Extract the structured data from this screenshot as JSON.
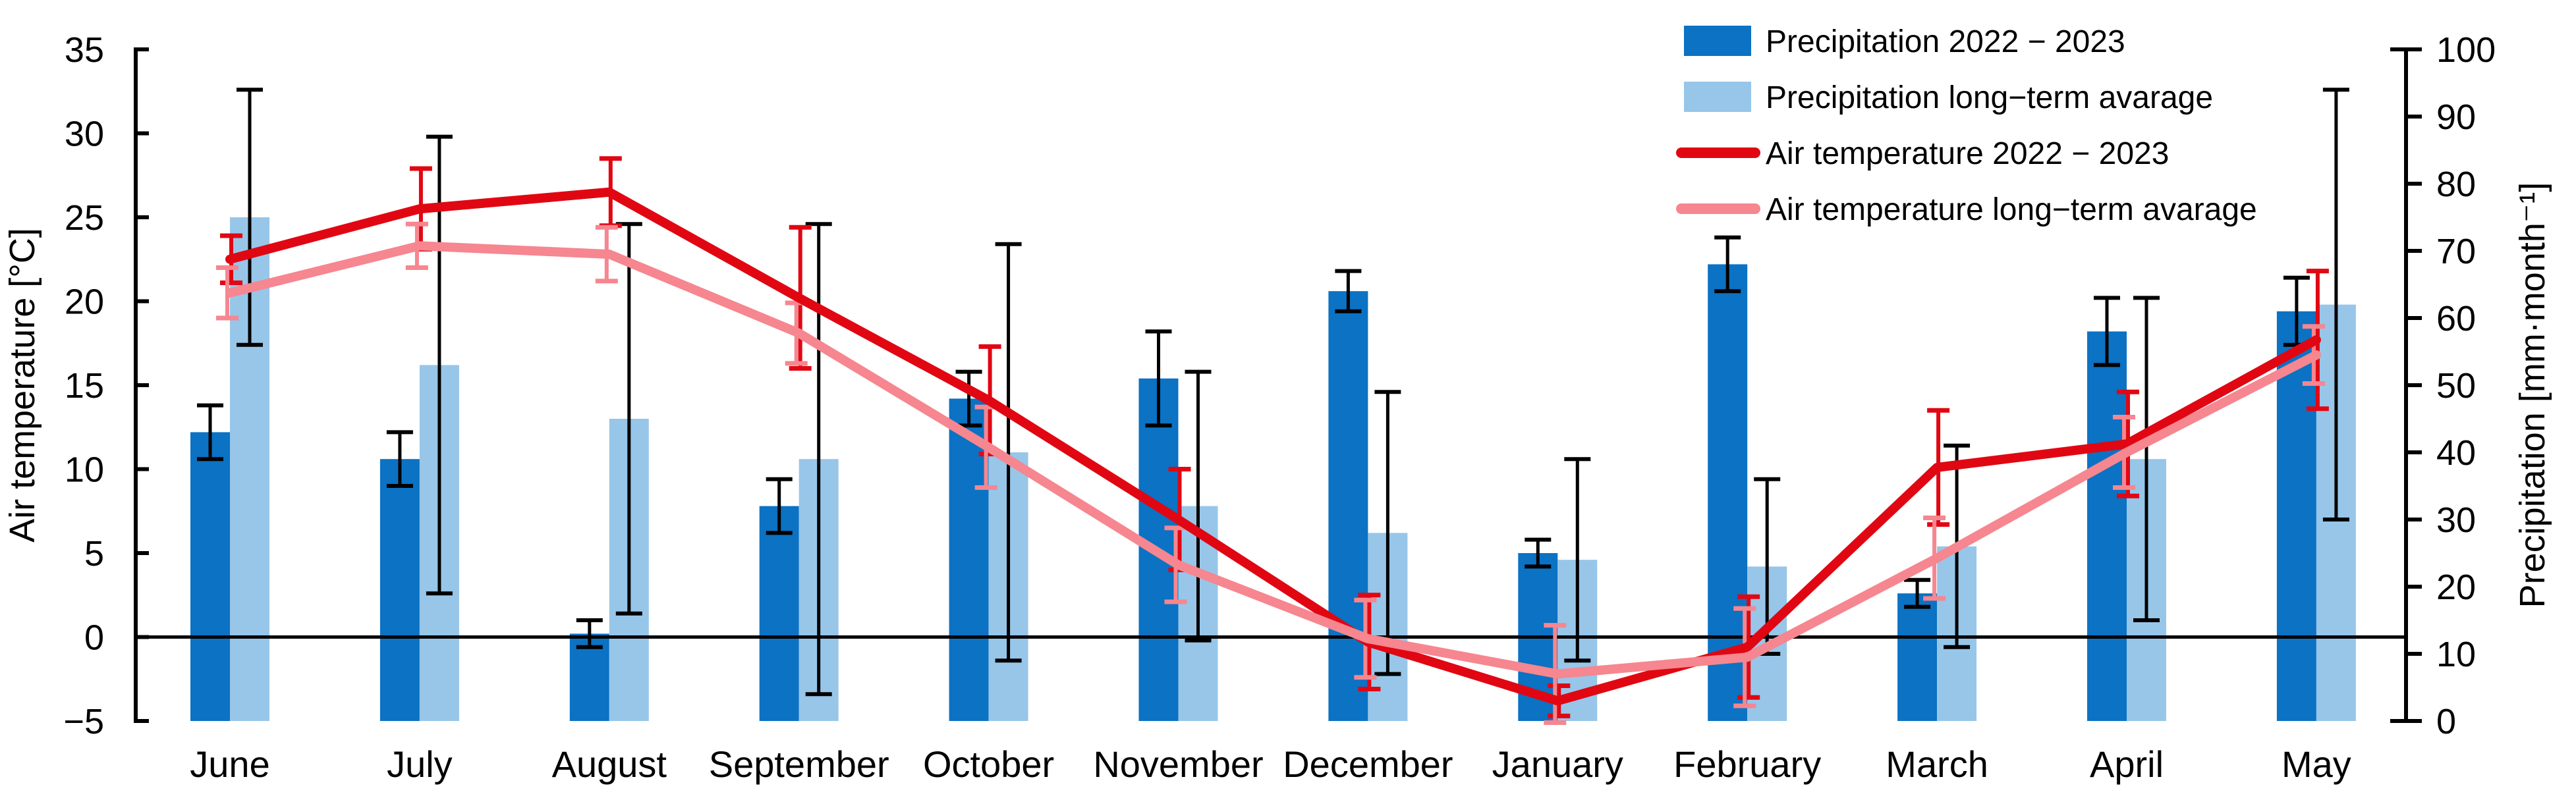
{
  "chart_data": {
    "type": "combo-bar-line",
    "title": "",
    "categories": [
      "June",
      "July",
      "August",
      "September",
      "October",
      "November",
      "December",
      "January",
      "February",
      "March",
      "April",
      "May"
    ],
    "left_axis": {
      "label": "Air temperature  [°C]",
      "min": -5,
      "max": 35,
      "tick_step": 5,
      "tick_labels": [
        "35",
        "30",
        "25",
        "20",
        "15",
        "10",
        "5",
        "0",
        "−5"
      ]
    },
    "right_axis": {
      "label": "Precipitation  [mm·month⁻¹]",
      "min": 0,
      "max": 100,
      "tick_step": 10,
      "tick_labels": [
        "100",
        "90",
        "80",
        "70",
        "60",
        "50",
        "40",
        "30",
        "20",
        "10",
        "0"
      ]
    },
    "grid": false,
    "zero_temperature_line": true,
    "legend_position": "top-right",
    "series": [
      {
        "name": "Precipitation 2022 − 2023",
        "type": "bar",
        "axis": "right",
        "color": "#0B72C4",
        "error_color": "#000000",
        "values": [
          43,
          39,
          13,
          32,
          48,
          51,
          64,
          25,
          68,
          19,
          58,
          61
        ],
        "errors": [
          4,
          4,
          2,
          4,
          4,
          7,
          3,
          2,
          4,
          2,
          5,
          5
        ]
      },
      {
        "name": "Precipitation long−term avarage",
        "type": "bar",
        "axis": "right",
        "color": "#97C6E9",
        "error_color": "#000000",
        "values": [
          75,
          53,
          45,
          39,
          40,
          32,
          28,
          24,
          23,
          26,
          39,
          62
        ],
        "errors": [
          19,
          34,
          29,
          35,
          31,
          20,
          21,
          15,
          13,
          15,
          24,
          32
        ]
      },
      {
        "name": "Air temperature 2022 − 2023",
        "type": "line",
        "axis": "left",
        "color": "#E00713",
        "error_color": "#E00713",
        "values": [
          22.5,
          25.5,
          26.5,
          20.2,
          14.1,
          7.0,
          -0.3,
          -3.8,
          -0.6,
          10.1,
          11.5,
          17.7
        ],
        "errors": [
          1.4,
          2.4,
          2.0,
          4.2,
          3.2,
          3.0,
          2.8,
          0.9,
          3.0,
          3.4,
          3.1,
          4.1
        ]
      },
      {
        "name": "Air temperature long−term avarage",
        "type": "line",
        "axis": "left",
        "color": "#F6868F",
        "error_color": "#F6868F",
        "values": [
          20.5,
          23.3,
          22.8,
          18.1,
          11.3,
          4.3,
          -0.1,
          -2.2,
          -1.2,
          4.7,
          11.0,
          16.8
        ],
        "errors": [
          1.5,
          1.3,
          1.6,
          1.8,
          2.4,
          2.2,
          2.3,
          2.9,
          2.9,
          2.4,
          2.1,
          1.7
        ]
      }
    ]
  }
}
